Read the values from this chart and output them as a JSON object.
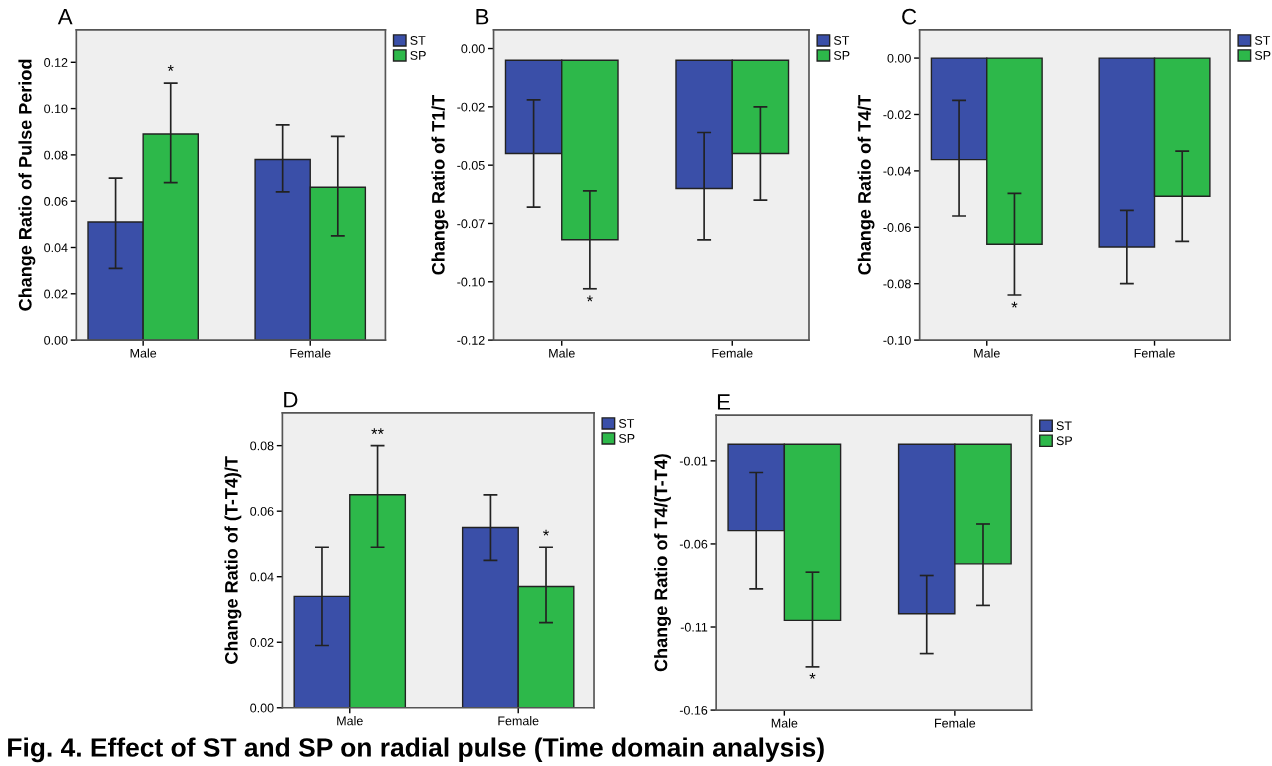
{
  "chart_data": [
    {
      "type": "bar",
      "title": "A",
      "ylabel": "Change Ratio of Pulse Period",
      "categories": [
        "Male",
        "Female"
      ],
      "ylim": [
        0,
        0.134
      ],
      "yticks": [
        {
          "value": 0,
          "label": "0.00"
        },
        0.02,
        0.04,
        0.06,
        0.08,
        {
          "value": 0.1,
          "label": "0.10"
        },
        0.12
      ],
      "legend": "top right",
      "grid": false,
      "series": [
        {
          "name": "ST",
          "color": "#3a4fa8",
          "values": [
            0.051,
            0.078
          ],
          "errors": [
            [
              0.031,
              0.07
            ],
            [
              0.064,
              0.093
            ]
          ]
        },
        {
          "name": "SP",
          "color": "#2db84a",
          "values": [
            0.089,
            0.066
          ],
          "errors": [
            [
              0.068,
              0.111
            ],
            [
              0.045,
              0.088
            ]
          ]
        }
      ],
      "annotations": [
        "*"
      ]
    },
    {
      "type": "bar",
      "title": "B",
      "ylabel": "Change Ratio of T1/T",
      "categories": [
        "Male",
        "Female"
      ],
      "ylim": [
        -0.12,
        0.013
      ],
      "yticks": [
        {
          "value": 0.005,
          "label": "0.00"
        },
        {
          "value": -0.02,
          "label": "-0.02"
        },
        {
          "value": -0.045,
          "label": "-0.05"
        },
        {
          "value": -0.07,
          "label": "-0.07"
        },
        {
          "value": -0.095,
          "label": "-0.10"
        },
        {
          "value": -0.12,
          "label": "-0.12"
        }
      ],
      "legend": "top right",
      "grid": false,
      "series": [
        {
          "name": "ST",
          "color": "#3a4fa8",
          "values": [
            -0.04,
            -0.055
          ],
          "errors": [
            [
              -0.063,
              -0.017
            ],
            [
              -0.077,
              -0.031
            ]
          ]
        },
        {
          "name": "SP",
          "color": "#2db84a",
          "values": [
            -0.077,
            -0.04
          ],
          "errors": [
            [
              -0.098,
              -0.056
            ],
            [
              -0.06,
              -0.02
            ]
          ]
        }
      ],
      "annotations": [
        "*"
      ]
    },
    {
      "type": "bar",
      "title": "C",
      "ylabel": "Change Ratio of T4/T",
      "categories": [
        "Male",
        "Female"
      ],
      "ylim": [
        -0.1,
        0.01
      ],
      "yticks": [
        {
          "value": 0,
          "label": "0.00"
        },
        -0.02,
        -0.04,
        -0.06,
        -0.08,
        {
          "value": -0.1,
          "label": "-0.10"
        }
      ],
      "legend": "top right",
      "grid": false,
      "series": [
        {
          "name": "ST",
          "color": "#3a4fa8",
          "values": [
            -0.036,
            -0.067
          ],
          "errors": [
            [
              -0.056,
              -0.015
            ],
            [
              -0.08,
              -0.054
            ]
          ]
        },
        {
          "name": "SP",
          "color": "#2db84a",
          "values": [
            -0.066,
            -0.049
          ],
          "errors": [
            [
              -0.084,
              -0.048
            ],
            [
              -0.065,
              -0.033
            ]
          ]
        }
      ],
      "annotations": [
        "*"
      ]
    },
    {
      "type": "bar",
      "title": "D",
      "ylabel": "Change Ratio of (T-T4)/T",
      "categories": [
        "Male",
        "Female"
      ],
      "ylim": [
        0,
        0.09
      ],
      "yticks": [
        {
          "value": 0,
          "label": "0.00"
        },
        0.02,
        0.04,
        0.06,
        0.08
      ],
      "legend": "top right",
      "grid": false,
      "series": [
        {
          "name": "ST",
          "color": "#3a4fa8",
          "values": [
            0.034,
            0.055
          ],
          "errors": [
            [
              0.019,
              0.049
            ],
            [
              0.045,
              0.065
            ]
          ]
        },
        {
          "name": "SP",
          "color": "#2db84a",
          "values": [
            0.065,
            0.037
          ],
          "errors": [
            [
              0.049,
              0.08
            ],
            [
              0.026,
              0.049
            ]
          ]
        }
      ],
      "annotations": [
        "**",
        "*"
      ]
    },
    {
      "type": "bar",
      "title": "E",
      "ylabel": "Change Ratio of T4/(T-T4)",
      "categories": [
        "Male",
        "Female"
      ],
      "ylim": [
        -0.16,
        0.0175
      ],
      "yticks": [
        -0.01,
        -0.06,
        -0.11,
        -0.16
      ],
      "legend": "top right",
      "grid": false,
      "series": [
        {
          "name": "ST",
          "color": "#3a4fa8",
          "values": [
            -0.052,
            -0.102
          ],
          "errors": [
            [
              -0.087,
              -0.017
            ],
            [
              -0.126,
              -0.079
            ]
          ]
        },
        {
          "name": "SP",
          "color": "#2db84a",
          "values": [
            -0.106,
            -0.072
          ],
          "errors": [
            [
              -0.134,
              -0.077
            ],
            [
              -0.097,
              -0.048
            ]
          ]
        }
      ],
      "annotations": [
        "*",
        "Fig. 4. Effect of ST and SP on radial pulse (Time domain analysis)"
      ]
    }
  ]
}
